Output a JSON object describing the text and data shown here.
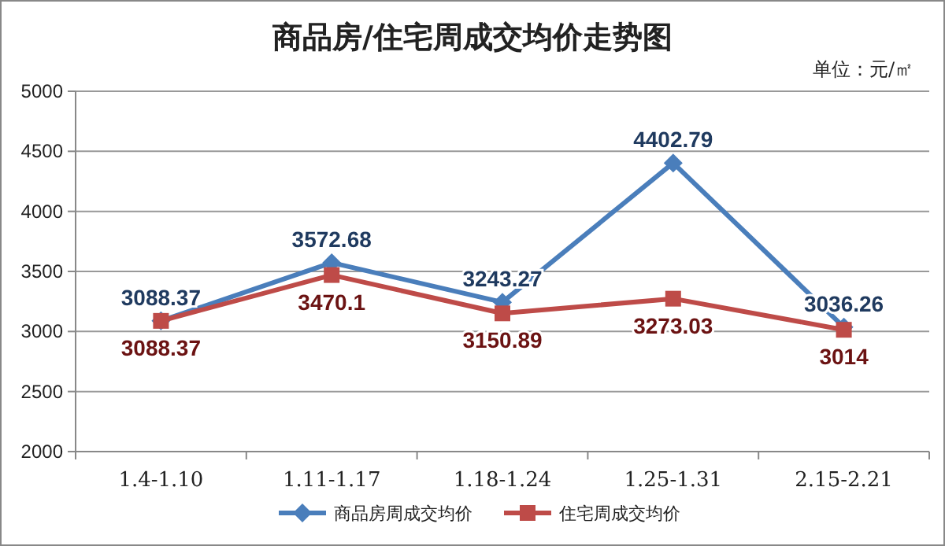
{
  "chart_data": {
    "type": "line",
    "title": "商品房/住宅周成交均价走势图",
    "subtitle": "单位：元/㎡",
    "categories": [
      "1.4-1.10",
      "1.11-1.17",
      "1.18-1.24",
      "1.25-1.31",
      "2.15-2.21"
    ],
    "series": [
      {
        "name": "商品房周成交均价",
        "color": "#4a7ebb",
        "marker": "diamond",
        "values": [
          3088.37,
          3572.68,
          3243.27,
          4402.79,
          3036.26
        ]
      },
      {
        "name": "住宅周成交均价",
        "color": "#be4b48",
        "marker": "square",
        "values": [
          3088.37,
          3470.1,
          3150.89,
          3273.03,
          3014
        ]
      }
    ],
    "ylim": [
      2000,
      5000
    ],
    "yticks": [
      2000,
      2500,
      3000,
      3500,
      4000,
      4500,
      5000
    ],
    "grid": "y",
    "legend": "bottom",
    "data_labels": true
  }
}
